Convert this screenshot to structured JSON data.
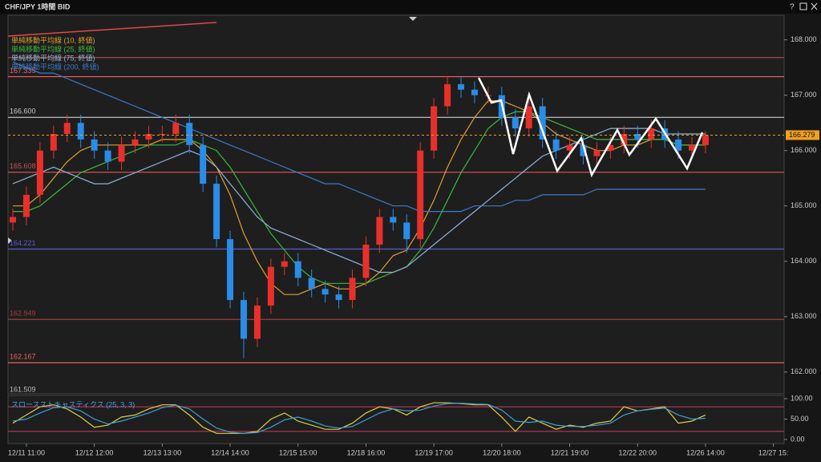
{
  "window_title": "CHF/JPY 1時間 BID",
  "help_label": "?",
  "chart_data": [
    {
      "type": "candlestick",
      "categories": [
        null,
        "12/11 11:00",
        null,
        null,
        null,
        null,
        "12/12 12:00",
        null,
        null,
        null,
        null,
        "12/13 13:00",
        null,
        null,
        null,
        null,
        "12/14 14:00",
        null,
        null,
        null,
        null,
        "12/15 15:00",
        null,
        null,
        null,
        null,
        "12/18 16:00",
        null,
        null,
        null,
        null,
        "12/19 17:00",
        null,
        null,
        null,
        null,
        "12/20 18:00",
        null,
        null,
        null,
        null,
        "12/21 19:00",
        null,
        null,
        null,
        null,
        "12/22 20:00",
        null,
        null,
        null,
        null,
        "12/26 14:00",
        null,
        null,
        null,
        null,
        "12/27 15:"
      ],
      "open": [
        164.7,
        164.8,
        165.2,
        166.0,
        166.3,
        166.5,
        166.2,
        166.0,
        165.8,
        166.1,
        166.2,
        166.3,
        166.3,
        166.5,
        166.1,
        165.4,
        164.4,
        163.3,
        162.6,
        163.2,
        163.9,
        164.0,
        163.7,
        163.5,
        163.4,
        163.3,
        163.7,
        164.3,
        164.8,
        164.7,
        164.4,
        166.0,
        166.8,
        167.2,
        167.1,
        167.0,
        167.0,
        166.6,
        166.4,
        166.8,
        166.2,
        166.0,
        166.1,
        165.9,
        166.0,
        166.1,
        166.3,
        166.2,
        166.4,
        166.2,
        166.0,
        166.1,
        null,
        null,
        null,
        null,
        null
      ],
      "high": [
        164.95,
        165.35,
        166.15,
        166.45,
        166.65,
        166.65,
        166.35,
        166.15,
        166.25,
        166.35,
        166.45,
        166.45,
        166.65,
        166.65,
        166.25,
        165.55,
        164.55,
        163.45,
        163.35,
        164.05,
        164.15,
        164.15,
        163.85,
        163.65,
        163.55,
        163.85,
        164.45,
        164.95,
        164.95,
        164.85,
        166.15,
        166.95,
        167.35,
        167.35,
        167.25,
        167.15,
        167.15,
        166.75,
        166.95,
        166.95,
        166.35,
        166.25,
        166.25,
        166.15,
        166.25,
        166.45,
        166.45,
        166.55,
        166.55,
        166.35,
        166.25,
        166.35,
        null,
        null,
        null,
        null,
        null
      ],
      "low": [
        164.55,
        164.65,
        165.05,
        165.85,
        166.15,
        166.05,
        165.85,
        165.65,
        165.65,
        165.95,
        166.05,
        166.15,
        166.15,
        165.95,
        165.25,
        164.25,
        163.15,
        162.25,
        162.45,
        163.05,
        163.75,
        163.55,
        163.35,
        163.25,
        163.15,
        163.15,
        163.55,
        164.15,
        164.55,
        164.15,
        164.25,
        165.85,
        166.65,
        166.95,
        166.85,
        166.85,
        166.45,
        166.25,
        166.25,
        166.05,
        165.85,
        165.85,
        165.75,
        165.75,
        165.85,
        165.95,
        166.05,
        166.05,
        166.05,
        165.85,
        165.85,
        165.95,
        null,
        null,
        null,
        null,
        null
      ],
      "close": [
        164.8,
        165.2,
        166.0,
        166.3,
        166.5,
        166.2,
        166.0,
        165.8,
        166.1,
        166.2,
        166.3,
        166.3,
        166.5,
        166.1,
        165.4,
        164.4,
        163.3,
        162.6,
        163.2,
        163.9,
        164.0,
        163.7,
        163.5,
        163.4,
        163.3,
        163.7,
        164.3,
        164.8,
        164.7,
        164.4,
        166.0,
        166.8,
        167.2,
        167.1,
        167.0,
        167.0,
        166.6,
        166.4,
        166.8,
        166.2,
        166.0,
        166.1,
        165.9,
        166.0,
        166.1,
        166.3,
        166.2,
        166.4,
        166.2,
        166.0,
        166.1,
        166.28,
        null,
        null,
        null,
        null,
        null
      ],
      "up_color": "#e8302a",
      "down_color": "#2a8ce8",
      "series": [
        {
          "name": "単純移動平均線 (10, 終値)",
          "color": "#e0a030",
          "values": [
            165.0,
            165.0,
            165.2,
            165.5,
            165.8,
            166.0,
            166.1,
            166.1,
            166.1,
            166.1,
            166.1,
            166.2,
            166.2,
            166.2,
            166.0,
            165.7,
            165.2,
            164.5,
            164.0,
            163.6,
            163.4,
            163.4,
            163.5,
            163.6,
            163.5,
            163.5,
            163.6,
            163.8,
            164.1,
            164.2,
            164.6,
            165.1,
            165.7,
            166.2,
            166.6,
            166.9,
            166.9,
            166.8,
            166.7,
            166.5,
            166.3,
            166.2,
            166.1,
            166.0,
            166.0,
            166.1,
            166.1,
            166.2,
            166.2,
            166.1,
            166.1,
            166.1,
            null,
            null,
            null,
            null,
            null
          ]
        },
        {
          "name": "単純移動平均線 (25, 終値)",
          "color": "#3cb83c",
          "values": [
            164.9,
            164.9,
            165.0,
            165.2,
            165.4,
            165.6,
            165.7,
            165.8,
            165.9,
            166.0,
            166.1,
            166.1,
            166.1,
            166.2,
            166.1,
            166.0,
            165.7,
            165.3,
            164.9,
            164.5,
            164.2,
            163.9,
            163.7,
            163.6,
            163.6,
            163.6,
            163.6,
            163.7,
            163.8,
            163.9,
            164.2,
            164.6,
            165.1,
            165.6,
            166.0,
            166.4,
            166.6,
            166.7,
            166.7,
            166.6,
            166.5,
            166.4,
            166.3,
            166.2,
            166.2,
            166.2,
            166.2,
            166.2,
            166.2,
            166.1,
            166.1,
            166.1,
            null,
            null,
            null,
            null,
            null
          ]
        },
        {
          "name": "単純移動平均線 (75, 終値)",
          "color": "#8fb4d8",
          "values": [
            165.4,
            165.5,
            165.6,
            165.7,
            165.6,
            165.5,
            165.4,
            165.4,
            165.5,
            165.6,
            165.7,
            165.8,
            165.9,
            166.0,
            165.9,
            165.7,
            165.4,
            165.1,
            164.8,
            164.6,
            164.5,
            164.4,
            164.3,
            164.2,
            164.1,
            164.0,
            163.9,
            163.8,
            163.8,
            163.9,
            164.1,
            164.3,
            164.5,
            164.7,
            164.9,
            165.1,
            165.3,
            165.5,
            165.7,
            165.9,
            166.0,
            166.1,
            166.2,
            166.3,
            166.4,
            166.4,
            166.4,
            166.4,
            166.3,
            166.3,
            166.3,
            166.3,
            null,
            null,
            null,
            null,
            null
          ]
        },
        {
          "name": "単純移動平均線 (200, 終値)",
          "color": "#3a7bc8",
          "values": [
            167.6,
            167.5,
            167.4,
            167.4,
            167.3,
            167.2,
            167.1,
            167.0,
            166.9,
            166.8,
            166.7,
            166.6,
            166.5,
            166.4,
            166.3,
            166.2,
            166.1,
            166.0,
            165.9,
            165.8,
            165.7,
            165.6,
            165.5,
            165.4,
            165.4,
            165.3,
            165.2,
            165.1,
            165.0,
            165.0,
            164.9,
            164.9,
            164.9,
            164.9,
            165.0,
            165.0,
            165.0,
            165.1,
            165.1,
            165.2,
            165.2,
            165.2,
            165.2,
            165.3,
            165.3,
            165.3,
            165.3,
            165.3,
            165.3,
            165.3,
            165.3,
            165.3,
            null,
            null,
            null,
            null,
            null
          ]
        }
      ],
      "ylim": [
        161.62,
        168.43
      ],
      "yticks": [
        {
          "value": 162,
          "label": "162.000"
        },
        {
          "value": 163,
          "label": "163.000"
        },
        {
          "value": 164,
          "label": "164.000"
        },
        {
          "value": 165,
          "label": "165.000"
        },
        {
          "value": 166,
          "label": "166.000"
        },
        {
          "value": 167,
          "label": "167.000"
        },
        {
          "value": 168,
          "label": "168.000"
        }
      ],
      "levels": [
        {
          "value": 167.68,
          "color": "#b04444"
        },
        {
          "value": 167.335,
          "label": "167.335",
          "color": "#f06060"
        },
        {
          "value": 166.6,
          "label": "166.600",
          "color": "#cccccc"
        },
        {
          "value": 165.608,
          "label": "165.608",
          "color": "#d05050"
        },
        {
          "value": 164.221,
          "label": "164.221",
          "color": "#5a5ad8"
        },
        {
          "value": 162.949,
          "label": "162.949",
          "color": "#a04040"
        },
        {
          "value": 162.167,
          "label": "162.167",
          "color": "#f06060"
        },
        {
          "value": 161.509,
          "label": "161.509"
        }
      ],
      "last_price": {
        "value": 166.279,
        "label": "166.279",
        "color": "#f0a020"
      }
    },
    {
      "type": "line",
      "title": "スロースストキャスティクス (25, 3, 3)",
      "series": [
        {
          "color": "#e0d040",
          "values": [
            40,
            60,
            80,
            85,
            75,
            55,
            30,
            35,
            55,
            60,
            75,
            85,
            85,
            60,
            30,
            15,
            15,
            15,
            20,
            50,
            65,
            45,
            35,
            25,
            25,
            40,
            65,
            80,
            75,
            60,
            80,
            90,
            90,
            88,
            85,
            85,
            55,
            20,
            55,
            40,
            25,
            35,
            30,
            40,
            45,
            80,
            70,
            75,
            80,
            40,
            45,
            60,
            null,
            null,
            null,
            null,
            null
          ]
        },
        {
          "color": "#3aa0d8",
          "values": [
            45,
            50,
            65,
            78,
            80,
            70,
            50,
            38,
            45,
            55,
            65,
            78,
            84,
            75,
            50,
            28,
            18,
            15,
            17,
            30,
            48,
            55,
            45,
            33,
            28,
            32,
            48,
            65,
            75,
            70,
            72,
            82,
            88,
            89,
            87,
            86,
            72,
            45,
            42,
            45,
            35,
            32,
            32,
            35,
            40,
            60,
            70,
            74,
            77,
            60,
            50,
            52,
            null,
            null,
            null,
            null,
            null
          ]
        }
      ],
      "ylim": [
        -8,
        108
      ],
      "yticks": [
        {
          "value": 0,
          "label": "0.00"
        },
        {
          "value": 50,
          "label": "50.00"
        },
        {
          "value": 100,
          "label": "100.00"
        }
      ],
      "levels": [
        {
          "value": 80,
          "color": "#b03050"
        },
        {
          "value": 20,
          "color": "#b03050"
        }
      ]
    }
  ]
}
